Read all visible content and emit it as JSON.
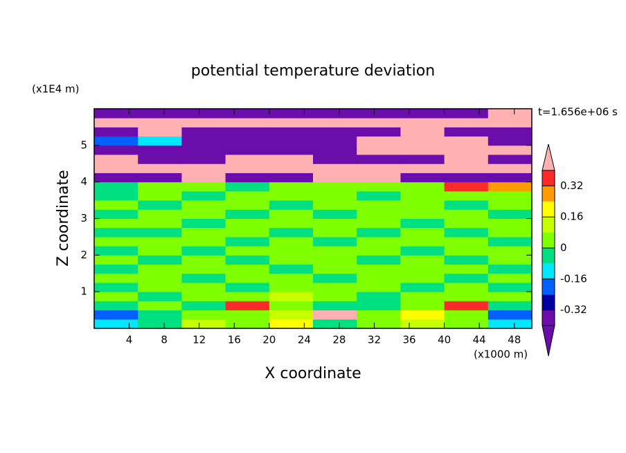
{
  "chart_data": {
    "type": "contour",
    "title": "potential temperature deviation",
    "xlabel": "X coordinate",
    "ylabel": "Z coordinate",
    "xunit": "(x1000 m)",
    "yunit": "(x1E4 m)",
    "annotation": "t=1.656e+06 s",
    "xlim": [
      0,
      50
    ],
    "ylim": [
      0,
      6
    ],
    "xticks": [
      4,
      8,
      12,
      16,
      20,
      24,
      28,
      32,
      36,
      40,
      44,
      48
    ],
    "yticks": [
      1,
      2,
      3,
      4,
      5
    ],
    "x": [
      2.5,
      7.5,
      12.5,
      17.5,
      22.5,
      27.5,
      32.5,
      37.5,
      42.5,
      47.5
    ],
    "y": [
      0.125,
      0.375,
      0.625,
      0.875,
      1.125,
      1.375,
      1.625,
      1.875,
      2.125,
      2.375,
      2.625,
      2.875,
      3.125,
      3.375,
      3.625,
      3.875,
      4.125,
      4.375,
      4.625,
      4.875,
      5.125,
      5.375,
      5.625,
      5.875
    ],
    "z": [
      [
        -0.12,
        -0.04,
        0.1,
        0.04,
        0.2,
        -0.04,
        0.04,
        0.12,
        0.04,
        -0.12
      ],
      [
        -0.2,
        -0.04,
        0.04,
        0.04,
        0.12,
        0.45,
        0.04,
        0.2,
        0.04,
        -0.2
      ],
      [
        -0.04,
        0.04,
        -0.04,
        0.36,
        0.04,
        -0.04,
        -0.04,
        0.04,
        0.36,
        -0.04
      ],
      [
        0.04,
        -0.04,
        0.04,
        0.04,
        0.12,
        0.04,
        -0.04,
        0.04,
        0.04,
        0.04
      ],
      [
        -0.04,
        0.04,
        0.04,
        -0.04,
        0.04,
        0.04,
        0.04,
        -0.04,
        0.04,
        -0.04
      ],
      [
        0.04,
        0.04,
        -0.04,
        0.04,
        0.04,
        -0.04,
        0.04,
        0.04,
        -0.04,
        0.04
      ],
      [
        -0.04,
        0.04,
        0.04,
        0.04,
        -0.04,
        0.04,
        0.04,
        0.04,
        0.04,
        -0.04
      ],
      [
        0.04,
        -0.04,
        0.04,
        -0.04,
        0.04,
        0.04,
        -0.04,
        0.04,
        -0.04,
        0.04
      ],
      [
        -0.04,
        0.04,
        -0.04,
        0.04,
        0.04,
        0.04,
        0.04,
        -0.04,
        0.04,
        0.04
      ],
      [
        0.04,
        0.04,
        0.04,
        -0.04,
        0.04,
        -0.04,
        0.04,
        0.04,
        0.04,
        -0.04
      ],
      [
        -0.04,
        -0.04,
        0.04,
        0.04,
        -0.04,
        0.04,
        -0.04,
        0.04,
        -0.04,
        0.04
      ],
      [
        0.04,
        0.04,
        -0.04,
        0.04,
        0.04,
        0.04,
        0.04,
        -0.04,
        0.04,
        0.04
      ],
      [
        -0.04,
        0.04,
        0.04,
        -0.04,
        0.04,
        -0.04,
        0.04,
        0.04,
        0.04,
        -0.04
      ],
      [
        0.04,
        -0.04,
        0.04,
        0.04,
        -0.04,
        0.04,
        0.04,
        0.04,
        -0.04,
        0.04
      ],
      [
        -0.04,
        0.04,
        -0.04,
        0.04,
        0.04,
        0.04,
        -0.04,
        0.04,
        0.04,
        0.04
      ],
      [
        -0.04,
        0.04,
        0.04,
        -0.04,
        0.04,
        0.04,
        0.04,
        0.04,
        0.36,
        0.28
      ],
      [
        -0.45,
        -0.45,
        0.45,
        -0.45,
        -0.45,
        0.45,
        0.45,
        -0.45,
        -0.45,
        -0.45
      ],
      [
        0.45,
        0.45,
        0.45,
        0.45,
        0.45,
        0.45,
        0.45,
        0.45,
        0.45,
        0.45
      ],
      [
        0.45,
        -0.45,
        -0.45,
        0.45,
        0.45,
        -0.45,
        -0.45,
        -0.45,
        0.45,
        -0.45
      ],
      [
        -0.45,
        -0.45,
        -0.45,
        -0.45,
        -0.45,
        -0.45,
        0.45,
        0.45,
        0.45,
        0.45
      ],
      [
        -0.2,
        -0.12,
        -0.45,
        -0.45,
        -0.45,
        -0.45,
        0.45,
        0.45,
        0.45,
        -0.45
      ],
      [
        -0.45,
        0.45,
        -0.45,
        -0.45,
        -0.45,
        -0.45,
        -0.45,
        0.45,
        -0.45,
        -0.45
      ],
      [
        0.45,
        0.45,
        0.45,
        0.45,
        0.45,
        0.45,
        0.45,
        0.45,
        0.45,
        0.45
      ],
      [
        -0.45,
        -0.45,
        -0.45,
        -0.45,
        -0.45,
        -0.45,
        -0.45,
        -0.45,
        -0.45,
        0.45
      ]
    ],
    "levels": [
      -0.4,
      -0.32,
      -0.24,
      -0.16,
      -0.08,
      0,
      0.08,
      0.16,
      0.24,
      0.32,
      0.4
    ],
    "colors": [
      "#6a0daa",
      "#0000a0",
      "#0060ff",
      "#00e8ff",
      "#00e080",
      "#80ff00",
      "#c8ff00",
      "#ffff00",
      "#ff9a00",
      "#ff2a2a"
    ],
    "under_color": "#6a0daa",
    "over_color": "#ffb0b0",
    "cbticks": [
      -0.32,
      -0.16,
      0,
      0.16,
      0.32
    ]
  }
}
